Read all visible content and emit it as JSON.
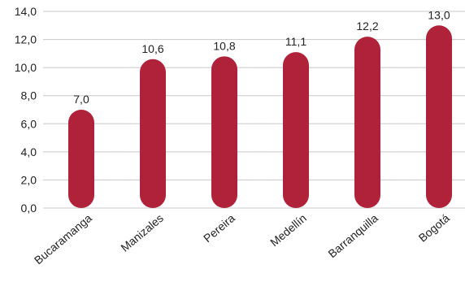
{
  "chart_data": {
    "type": "bar",
    "categories": [
      "Bucaramanga",
      "Manizales",
      "Pereira",
      "Medellín",
      "Barranquilla",
      "Bogotá"
    ],
    "values": [
      7.0,
      10.6,
      10.8,
      11.1,
      12.2,
      13.0
    ],
    "value_labels": [
      "7,0",
      "10,6",
      "10,8",
      "11,1",
      "12,2",
      "13,0"
    ],
    "y_ticks": [
      0,
      2,
      4,
      6,
      8,
      10,
      12,
      14
    ],
    "y_tick_labels": [
      "0,0",
      "2,0",
      "4,0",
      "6,0",
      "8,0",
      "10,0",
      "12,0",
      "14,0"
    ],
    "ylim": [
      0,
      14
    ],
    "grid": true,
    "bar_color": "#b0213a",
    "title": "",
    "xlabel": "",
    "ylabel": ""
  }
}
